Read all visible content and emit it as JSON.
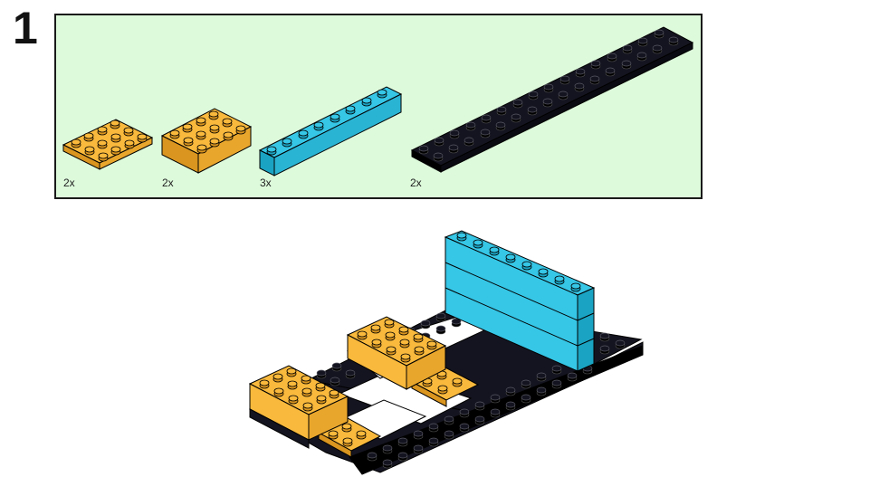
{
  "step": {
    "number": "1"
  },
  "parts_list": {
    "background": "#ddfadb",
    "parts": [
      {
        "name": "orange-2x4-plate",
        "quantity": "2x",
        "color": "#f9b93c"
      },
      {
        "name": "orange-2x4-brick",
        "quantity": "2x",
        "color": "#f9b93c"
      },
      {
        "name": "blue-1x8-brick",
        "quantity": "3x",
        "color": "#36c6e6"
      },
      {
        "name": "black-2x16-plate",
        "quantity": "2x",
        "color": "#141420"
      }
    ]
  },
  "colors": {
    "orange": "#f9b93c",
    "blue": "#36c6e6",
    "black": "#141420",
    "outline": "#000000"
  }
}
